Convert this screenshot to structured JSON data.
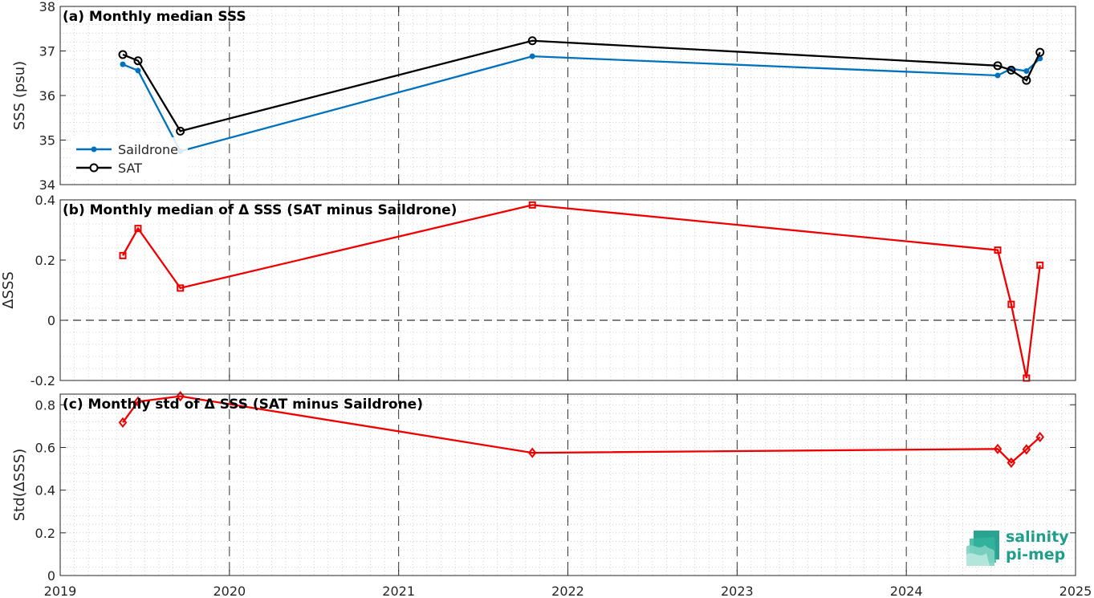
{
  "axes": {
    "x_ticks": [
      "2019",
      "2020",
      "2021",
      "2022",
      "2023",
      "2024",
      "2025"
    ],
    "x_tick_values": [
      2019,
      2020,
      2021,
      2022,
      2023,
      2024,
      2025
    ],
    "xlim": [
      2019,
      2025
    ]
  },
  "colors": {
    "saildrone": "#0072BD",
    "sat": "#000000",
    "delta": "#EE0000",
    "grid": "#c8c8c8",
    "year_lines": "#333333",
    "logo": "#1f9e8a"
  },
  "panels": [
    {
      "title": "(a) Monthly median SSS",
      "ylabel": "SSS (psu)",
      "ylim": [
        34,
        38
      ],
      "yticks": [
        34,
        35,
        36,
        37,
        38
      ],
      "ytick_labels": [
        "34",
        "35",
        "36",
        "37",
        "38"
      ]
    },
    {
      "title": "(b) Monthly median of Δ SSS (SAT minus Saildrone)",
      "ylabel": "ΔSSS",
      "ylim": [
        -0.2,
        0.4
      ],
      "yticks": [
        -0.2,
        0,
        0.2,
        0.4
      ],
      "ytick_labels": [
        "-0.2",
        "0",
        "0.2",
        "0.4"
      ]
    },
    {
      "title": "(c) Monthly std of Δ SSS (SAT minus Saildrone)",
      "ylabel": "Std(ΔSSS)",
      "ylim": [
        0,
        0.85
      ],
      "yticks": [
        0,
        0.2,
        0.4,
        0.6,
        0.8
      ],
      "ytick_labels": [
        "0",
        "0.2",
        "0.4",
        "0.6",
        "0.8"
      ]
    }
  ],
  "legend": {
    "items": [
      "Saildrone",
      "SAT"
    ],
    "placement": "lower-left"
  },
  "logo": {
    "line1": "salinity",
    "line2": "pi-mep"
  },
  "chart_data": [
    {
      "type": "line",
      "title": "(a) Monthly median SSS",
      "ylabel": "SSS (psu)",
      "xlim": [
        2019,
        2025
      ],
      "ylim": [
        34,
        38
      ],
      "x": [
        2019.37,
        2019.46,
        2019.71,
        2021.79,
        2024.54,
        2024.62,
        2024.71,
        2024.79
      ],
      "series": [
        {
          "name": "Saildrone",
          "marker": "dot",
          "values": [
            36.7,
            36.56,
            34.75,
            36.88,
            36.45,
            36.6,
            36.55,
            36.83
          ]
        },
        {
          "name": "SAT",
          "marker": "circle",
          "values": [
            36.92,
            36.78,
            35.2,
            37.23,
            36.67,
            36.57,
            36.34,
            36.97
          ]
        }
      ],
      "grid": true,
      "legend": "lower-left"
    },
    {
      "type": "line",
      "title": "(b) Monthly median of Δ SSS (SAT minus Saildrone)",
      "ylabel": "ΔSSS",
      "xlim": [
        2019,
        2025
      ],
      "ylim": [
        -0.2,
        0.4
      ],
      "x": [
        2019.37,
        2019.46,
        2019.71,
        2021.79,
        2024.54,
        2024.62,
        2024.71,
        2024.79
      ],
      "series": [
        {
          "marker": "square",
          "values": [
            0.215,
            0.305,
            0.107,
            0.383,
            0.233,
            0.053,
            -0.192,
            0.183
          ]
        }
      ],
      "reference_line": 0,
      "grid": true
    },
    {
      "type": "line",
      "title": "(c) Monthly std of Δ SSS (SAT minus Saildrone)",
      "ylabel": "Std(ΔSSS)",
      "xlim": [
        2019,
        2025
      ],
      "ylim": [
        0,
        0.85
      ],
      "x": [
        2019.37,
        2019.46,
        2019.71,
        2021.79,
        2024.54,
        2024.62,
        2024.71,
        2024.79
      ],
      "series": [
        {
          "marker": "diamond",
          "values": [
            0.717,
            0.815,
            0.84,
            0.575,
            0.593,
            0.529,
            0.591,
            0.649
          ]
        }
      ],
      "grid": true
    }
  ]
}
